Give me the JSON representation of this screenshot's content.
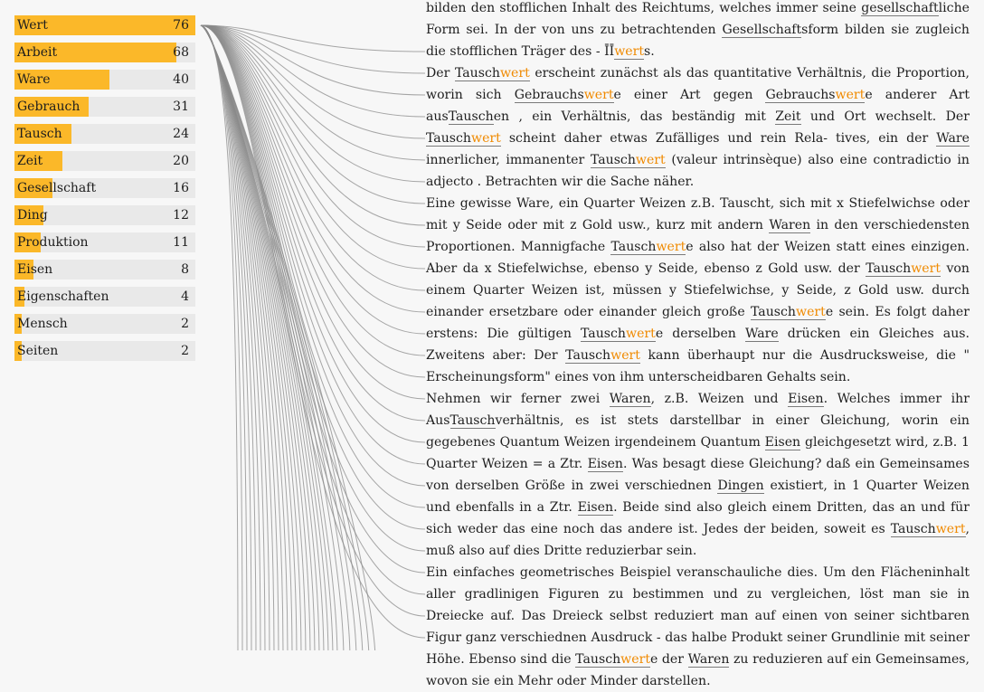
{
  "term_list": {
    "max_count": 76,
    "items": [
      {
        "name": "Wert",
        "count": 76
      },
      {
        "name": "Arbeit",
        "count": 68
      },
      {
        "name": "Ware",
        "count": 40
      },
      {
        "name": "Gebrauch",
        "count": 31
      },
      {
        "name": "Tausch",
        "count": 24
      },
      {
        "name": "Zeit",
        "count": 20
      },
      {
        "name": "Gesellschaft",
        "count": 16
      },
      {
        "name": "Ding",
        "count": 12
      },
      {
        "name": "Produktion",
        "count": 11
      },
      {
        "name": "Eisen",
        "count": 8
      },
      {
        "name": "Eigenschaften",
        "count": 4
      },
      {
        "name": "Mensch",
        "count": 2
      },
      {
        "name": "Seiten",
        "count": 2
      }
    ]
  },
  "colors": {
    "bar": "#fbb829",
    "bar_track": "#e9e9e9",
    "highlight": "#f08a00",
    "link": "#8a8a8a"
  },
  "paragraphs": [
    [
      {
        "t": "bilden den stofflichen Inhalt des Reichtums, welches immer seine "
      },
      {
        "t": "gesellschaft",
        "mark": true
      },
      {
        "t": "liche Form sei. In der von uns zu betrachtenden "
      },
      {
        "t": "Gesellschaft",
        "mark": true
      },
      {
        "t": "sform bilden sie zugleich die stofflichen Träger des - ĪĪ"
      },
      {
        "t": "wert",
        "mark": true,
        "hl": true
      },
      {
        "t": "s."
      }
    ],
    [
      {
        "t": "Der "
      },
      {
        "t": "Tausch",
        "mark": true
      },
      {
        "t": "wert",
        "mark": true,
        "hl": true
      },
      {
        "t": " erscheint zunächst als das quantitative Verhältnis, die Proportion, worin sich "
      },
      {
        "t": "Gebrauch",
        "mark": true
      },
      {
        "t": "s",
        "mark": true
      },
      {
        "t": "wert",
        "mark": true,
        "hl": true
      },
      {
        "t": "e einer Art gegen "
      },
      {
        "t": "Gebrauch",
        "mark": true
      },
      {
        "t": "s",
        "mark": true
      },
      {
        "t": "wert",
        "mark": true,
        "hl": true
      },
      {
        "t": "e anderer Art aus"
      },
      {
        "t": "Tausch",
        "mark": true
      },
      {
        "t": "en , ein Verhältnis, das beständig mit "
      },
      {
        "t": "Zeit",
        "mark": true
      },
      {
        "t": " und Ort wechselt. Der "
      },
      {
        "t": "Tausch",
        "mark": true
      },
      {
        "t": "wert",
        "mark": true,
        "hl": true
      },
      {
        "t": " scheint daher etwas Zufälliges und rein Rela- tives, ein der "
      },
      {
        "t": "Ware",
        "mark": true
      },
      {
        "t": " innerlicher, immanenter "
      },
      {
        "t": "Tausch",
        "mark": true
      },
      {
        "t": "wert",
        "mark": true,
        "hl": true
      },
      {
        "t": " (valeur intrinsèque) also eine contradictio in adjecto . Betrachten wir die Sache näher."
      }
    ],
    [
      {
        "t": "Eine gewisse Ware, ein Quarter Weizen z.B. Tauscht, sich mit x Stiefelwichse oder mit y Seide oder mit z Gold usw., kurz mit andern "
      },
      {
        "t": "Waren",
        "mark": true
      },
      {
        "t": " in den verschiedensten Proportionen. Mannigfache "
      },
      {
        "t": "Tausch",
        "mark": true
      },
      {
        "t": "wert",
        "mark": true,
        "hl": true
      },
      {
        "t": "e also hat der Weizen statt eines einzigen. Aber da x Stiefelwichse, ebenso y Seide, ebenso z Gold usw. der "
      },
      {
        "t": "Tausch",
        "mark": true
      },
      {
        "t": "wert",
        "mark": true,
        "hl": true
      },
      {
        "t": " von einem Quarter Weizen ist, müssen y Stiefelwichse, y Seide, z Gold usw. durch einander ersetzbare oder einander gleich große "
      },
      {
        "t": "Tausch",
        "mark": true
      },
      {
        "t": "wert",
        "mark": true,
        "hl": true
      },
      {
        "t": "e sein. Es folgt daher erstens: Die gültigen "
      },
      {
        "t": "Tausch",
        "mark": true
      },
      {
        "t": "wert",
        "mark": true,
        "hl": true
      },
      {
        "t": "e derselben "
      },
      {
        "t": "Ware",
        "mark": true
      },
      {
        "t": " drücken ein Gleiches aus. Zweitens aber: Der "
      },
      {
        "t": "Tausch",
        "mark": true
      },
      {
        "t": "wert",
        "mark": true,
        "hl": true
      },
      {
        "t": " kann überhaupt nur die Ausdrucksweise, die \" Erscheinungsform\" eines von ihm unterscheidbaren Gehalts sein."
      }
    ],
    [
      {
        "t": "Nehmen wir ferner zwei "
      },
      {
        "t": "Waren",
        "mark": true
      },
      {
        "t": ", z.B. Weizen und "
      },
      {
        "t": "Eisen",
        "mark": true
      },
      {
        "t": ". Welches immer ihr Aus"
      },
      {
        "t": "Tausch",
        "mark": true
      },
      {
        "t": "verhältnis, es ist stets darstellbar in einer Gleichung, worin ein gegebenes Quantum Weizen irgendeinem Quantum "
      },
      {
        "t": "Eisen",
        "mark": true
      },
      {
        "t": " gleichgesetzt wird, z.B. 1 Quarter Weizen = a Ztr. "
      },
      {
        "t": "Eisen",
        "mark": true
      },
      {
        "t": ". Was besagt diese Gleichung? daß ein Gemeinsames von derselben Größe in zwei verschiednen "
      },
      {
        "t": "Dingen",
        "mark": true
      },
      {
        "t": " existiert, in 1 Quarter Weizen und ebenfalls in a Ztr. "
      },
      {
        "t": "Eisen",
        "mark": true
      },
      {
        "t": ". Beide sind also gleich einem Dritten, das an und für sich weder das eine noch das andere ist. Jedes der beiden, soweit es "
      },
      {
        "t": "Tausch",
        "mark": true
      },
      {
        "t": "wert",
        "mark": true,
        "hl": true
      },
      {
        "t": ", muß also auf dies Dritte reduzierbar sein."
      }
    ],
    [
      {
        "t": "Ein einfaches geometrisches Beispiel veranschauliche dies. Um den Flächeninhalt aller gradlinigen Figuren zu bestimmen und zu vergleichen, löst man sie in Dreiecke auf. Das Dreieck selbst reduziert man auf einen von seiner sichtbaren Figur ganz verschiednen Ausdruck - das halbe Produkt seiner Grundlinie mit seiner Höhe. Ebenso sind die "
      },
      {
        "t": "Tausch",
        "mark": true
      },
      {
        "t": "wert",
        "mark": true,
        "hl": true
      },
      {
        "t": "e der "
      },
      {
        "t": "Waren",
        "mark": true
      },
      {
        "t": " zu reduzieren auf ein Gemeinsames, wovon sie ein Mehr oder Minder darstellen."
      }
    ]
  ]
}
